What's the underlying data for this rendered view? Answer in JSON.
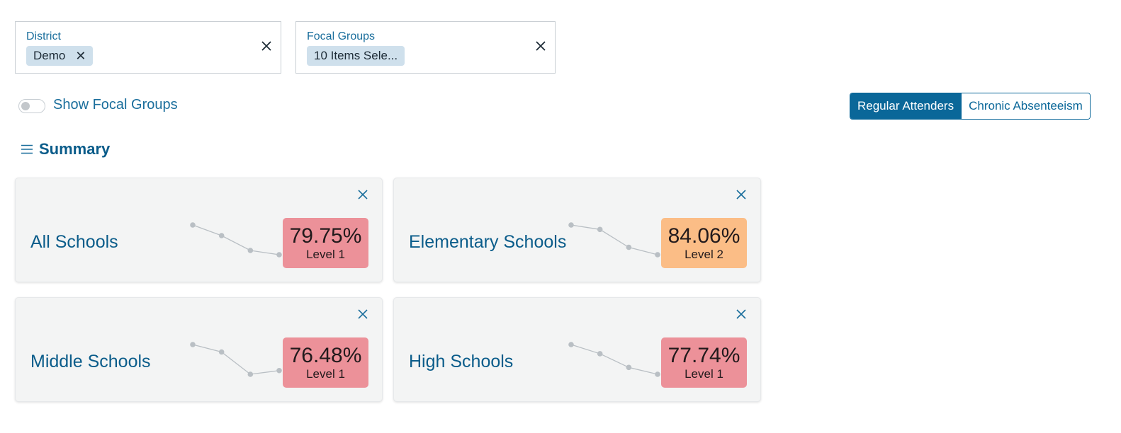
{
  "filters": {
    "district": {
      "label": "District",
      "chip": "Demo"
    },
    "focal_groups": {
      "label": "Focal Groups",
      "chip": "10 Items Sele..."
    }
  },
  "toggle": {
    "label": "Show Focal Groups",
    "on": false
  },
  "segments": {
    "active": "Regular Attenders",
    "inactive": "Chronic Absenteeism"
  },
  "summary": {
    "title": "Summary"
  },
  "colors": {
    "accent": "#0a6799",
    "level1": "#ec9199",
    "level2": "#fbbd86",
    "spark": "#b9bfc4"
  },
  "icons": {
    "menu": "menu-icon",
    "close": "close-icon"
  },
  "cards": [
    {
      "name": "All Schools",
      "value": "79.75%",
      "level": "Level 1",
      "trend": [
        79.9,
        79.85,
        79.78,
        79.76
      ]
    },
    {
      "name": "Elementary Schools",
      "value": "84.06%",
      "level": "Level 2",
      "trend": [
        84.25,
        84.22,
        84.1,
        84.05
      ]
    },
    {
      "name": "Middle Schools",
      "value": "76.48%",
      "level": "Level 1",
      "trend": [
        76.66,
        76.62,
        76.5,
        76.52
      ]
    },
    {
      "name": "High Schools",
      "value": "77.74%",
      "level": "Level 1",
      "trend": [
        77.88,
        77.84,
        77.78,
        77.75
      ]
    }
  ]
}
